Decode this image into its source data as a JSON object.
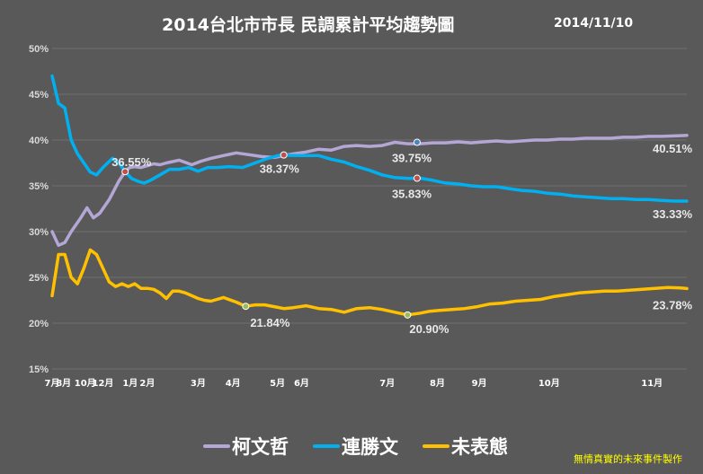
{
  "chart_data": {
    "type": "line",
    "title": "2014台北市市長  民調累計平均趨勢圖",
    "date_label": "2014/11/10",
    "credit": "無情真實的未來事件製作",
    "ylim": [
      15,
      50
    ],
    "yticks": [
      "15%",
      "20%",
      "25%",
      "30%",
      "35%",
      "40%",
      "45%",
      "50%"
    ],
    "ytick_values": [
      15,
      20,
      25,
      30,
      35,
      40,
      45,
      50
    ],
    "xlim": [
      0,
      100
    ],
    "xticks": [
      {
        "label": "7月",
        "x": 0
      },
      {
        "label": "8月",
        "x": 1.8
      },
      {
        "label": "10月",
        "x": 5.2
      },
      {
        "label": "12月",
        "x": 8.0
      },
      {
        "label": "1月",
        "x": 12.3
      },
      {
        "label": "2月",
        "x": 15.0
      },
      {
        "label": "3月",
        "x": 23.0
      },
      {
        "label": "4月",
        "x": 28.5
      },
      {
        "label": "5月",
        "x": 35.5
      },
      {
        "label": "6月",
        "x": 39.3
      },
      {
        "label": "7月",
        "x": 52.8
      },
      {
        "label": "8月",
        "x": 60.7
      },
      {
        "label": "9月",
        "x": 67.3
      },
      {
        "label": "10月",
        "x": 78.3
      },
      {
        "label": "11月",
        "x": 94.5
      }
    ],
    "grid": true,
    "legend_position": "bottom",
    "series": [
      {
        "name": "柯文哲",
        "color": "#b4a7d6",
        "x": [
          0,
          1,
          2,
          3,
          4.5,
          5.5,
          6.5,
          7.5,
          9,
          10.5,
          11.5,
          12.2,
          13,
          14,
          15,
          16,
          17,
          18,
          20,
          22,
          23.5,
          25,
          27,
          29,
          31,
          33,
          35,
          37,
          38,
          40,
          42,
          44,
          46,
          48,
          50,
          52,
          54,
          56,
          58,
          60,
          62,
          64,
          66,
          68,
          70,
          72,
          74,
          76,
          78,
          80,
          82,
          84,
          86,
          88,
          90,
          92,
          94,
          96,
          98,
          100
        ],
        "y": [
          30,
          28.5,
          28.8,
          30,
          31.5,
          32.6,
          31.5,
          32,
          33.5,
          35.5,
          36.55,
          37,
          37.1,
          37,
          37.2,
          37.4,
          37.3,
          37.5,
          37.8,
          37.3,
          37.7,
          38,
          38.3,
          38.6,
          38.4,
          38.2,
          38.1,
          38.37,
          38.5,
          38.7,
          39,
          38.9,
          39.3,
          39.4,
          39.3,
          39.4,
          39.75,
          39.6,
          39.6,
          39.7,
          39.7,
          39.8,
          39.7,
          39.8,
          39.9,
          39.8,
          39.9,
          40,
          40,
          40.1,
          40.1,
          40.2,
          40.2,
          40.2,
          40.3,
          40.3,
          40.4,
          40.4,
          40.45,
          40.51
        ]
      },
      {
        "name": "連勝文",
        "color": "#00b0f0",
        "x": [
          0,
          1,
          2,
          3,
          4,
          5,
          6,
          7,
          8,
          9.5,
          10.5,
          11.5,
          12.5,
          13.5,
          14.5,
          15.5,
          17,
          18.5,
          20,
          21.5,
          23,
          24.5,
          26,
          28,
          30,
          32,
          34,
          36,
          38,
          40,
          42,
          44,
          46,
          48,
          50,
          52,
          54,
          56,
          58,
          60,
          62,
          64,
          66,
          68,
          70,
          72,
          74,
          76,
          78,
          80,
          82,
          84,
          86,
          88,
          90,
          92,
          94,
          96,
          98,
          100
        ],
        "y": [
          47,
          44,
          43.5,
          40,
          38.5,
          37.5,
          36.5,
          36.2,
          37,
          38,
          37.5,
          36.55,
          35.8,
          35.5,
          35.3,
          35.6,
          36.2,
          36.8,
          36.8,
          37,
          36.6,
          37,
          37,
          37.1,
          37,
          37.5,
          38,
          38.37,
          38.3,
          38.3,
          38.3,
          37.9,
          37.6,
          37.1,
          36.7,
          36.2,
          35.9,
          35.8,
          35.83,
          35.6,
          35.3,
          35.2,
          35,
          34.9,
          34.9,
          34.7,
          34.5,
          34.4,
          34.2,
          34.1,
          33.9,
          33.8,
          33.7,
          33.6,
          33.6,
          33.5,
          33.5,
          33.4,
          33.33,
          33.33
        ]
      },
      {
        "name": "未表態",
        "color": "#ffc000",
        "x": [
          0,
          1,
          2,
          3,
          4,
          5,
          6,
          7,
          8,
          9,
          10,
          11,
          12,
          13,
          14,
          15,
          16,
          17,
          18,
          19,
          20,
          21,
          22,
          23,
          24,
          25,
          27,
          29,
          30.5,
          32,
          33.5,
          35,
          36.5,
          38,
          40,
          42,
          44,
          46,
          48,
          50,
          52,
          54,
          56,
          58,
          59.5,
          61,
          63,
          65,
          67,
          69,
          71,
          73,
          75,
          77,
          79,
          81,
          83,
          85,
          87,
          89,
          91,
          93,
          95,
          97,
          99,
          100
        ],
        "y": [
          23,
          27.5,
          27.5,
          25,
          24.3,
          26,
          28,
          27.5,
          26,
          24.5,
          24,
          24.3,
          24,
          24.3,
          23.8,
          23.8,
          23.7,
          23.3,
          22.7,
          23.5,
          23.5,
          23.3,
          23,
          22.7,
          22.5,
          22.4,
          22.8,
          22.3,
          21.84,
          22,
          22,
          21.8,
          21.6,
          21.7,
          21.9,
          21.6,
          21.5,
          21.2,
          21.6,
          21.7,
          21.5,
          21.2,
          20.9,
          21.1,
          21.3,
          21.4,
          21.5,
          21.6,
          21.8,
          22.1,
          22.2,
          22.4,
          22.5,
          22.6,
          22.9,
          23.1,
          23.3,
          23.4,
          23.5,
          23.5,
          23.6,
          23.7,
          23.8,
          23.9,
          23.85,
          23.78
        ]
      }
    ],
    "annotations": [
      {
        "text": "36.55%",
        "series": "連勝文",
        "x": 11.5,
        "y": 36.55,
        "marker_color": "#c0504d",
        "dx": -15,
        "dy": -6
      },
      {
        "text": "38.37%",
        "series": "柯文哲",
        "x": 36.5,
        "y": 38.37,
        "marker_color": "#c0504d",
        "dx": -27,
        "dy": 20
      },
      {
        "text": "39.75%",
        "series": "柯文哲",
        "x": 57.5,
        "y": 39.75,
        "marker_color": "#4f81bd",
        "dx": -28,
        "dy": 22
      },
      {
        "text": "35.83%",
        "series": "連勝文",
        "x": 57.5,
        "y": 35.83,
        "marker_color": "#c0504d",
        "dx": -28,
        "dy": 22
      },
      {
        "text": "40.51%",
        "series": "柯文哲",
        "x": 100,
        "y": 40.51,
        "marker_color": null,
        "dx": -38,
        "dy": 19
      },
      {
        "text": "33.33%",
        "series": "連勝文",
        "x": 100,
        "y": 33.33,
        "marker_color": null,
        "dx": -38,
        "dy": 19
      },
      {
        "text": "21.84%",
        "series": "未表態",
        "x": 30.5,
        "y": 21.84,
        "marker_color": "#9bbb59",
        "dx": 5,
        "dy": 23
      },
      {
        "text": "20.90%",
        "series": "未表態",
        "x": 56,
        "y": 20.9,
        "marker_color": "#9bbb59",
        "dx": 2,
        "dy": 20
      },
      {
        "text": "23.78%",
        "series": "未表態",
        "x": 100,
        "y": 23.78,
        "marker_color": null,
        "dx": -38,
        "dy": 23
      }
    ]
  }
}
